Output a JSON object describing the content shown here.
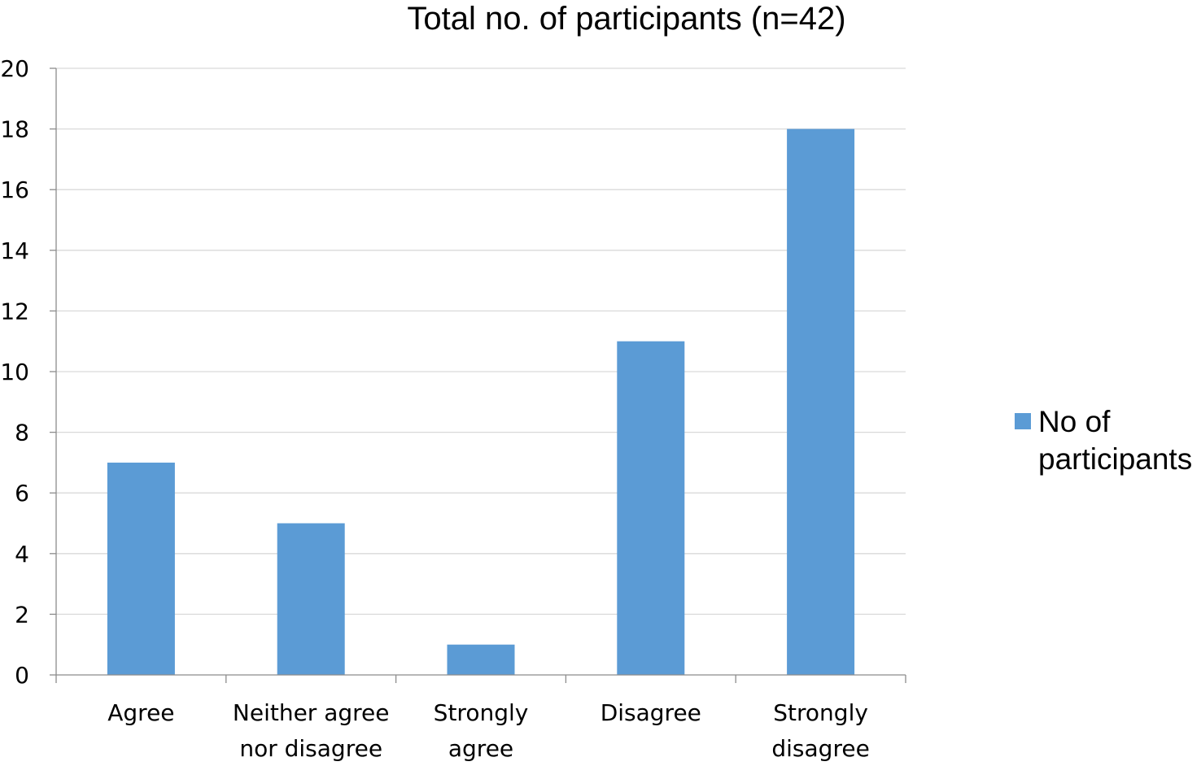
{
  "chart_data": {
    "type": "bar",
    "title": "Total no. of participants (n=42)",
    "xlabel": "",
    "ylabel": "",
    "categories": [
      [
        "Agree"
      ],
      [
        "Neither agree",
        "nor disagree"
      ],
      [
        "Strongly",
        "agree"
      ],
      [
        "Disagree"
      ],
      [
        "Strongly",
        "disagree"
      ]
    ],
    "series": [
      {
        "name": "No of participants",
        "name_lines": [
          "No of",
          "participants"
        ],
        "values": [
          7,
          5,
          1,
          11,
          18
        ],
        "color": "#5b9bd5"
      }
    ],
    "ylim": [
      0,
      20
    ],
    "yticks": [
      0,
      2,
      4,
      6,
      8,
      10,
      12,
      14,
      16,
      18,
      20
    ],
    "grid": true,
    "legend_position": "right"
  }
}
